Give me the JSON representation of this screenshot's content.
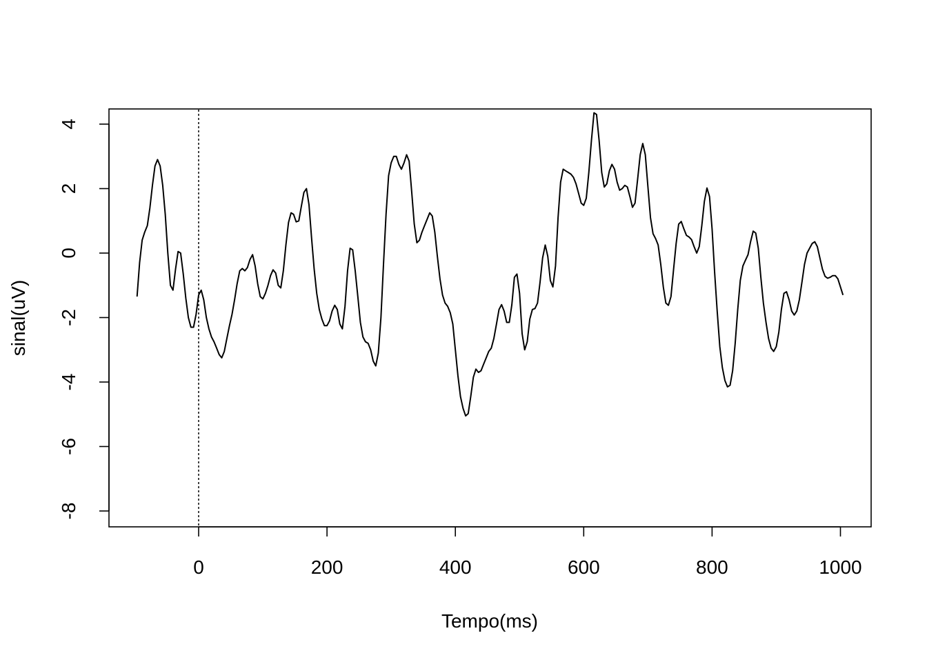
{
  "chart_data": {
    "type": "line",
    "title": "",
    "xlabel": "Tempo(ms)",
    "ylabel": "sinal(uV)",
    "xlim": [
      -140,
      1050
    ],
    "ylim": [
      -8.5,
      4.5
    ],
    "x_ticks": [
      0,
      200,
      400,
      600,
      800,
      1000
    ],
    "y_ticks": [
      4,
      2,
      0,
      -2,
      -4,
      -6,
      -8
    ],
    "x_tick_labels": [
      "0",
      "200",
      "400",
      "600",
      "800",
      "1000"
    ],
    "y_tick_labels": [
      "4",
      "2",
      "0",
      "-2",
      "-4",
      "-6",
      "-8"
    ],
    "grid": false,
    "reference_line": {
      "orientation": "vertical",
      "x": 0,
      "style": "dotted"
    },
    "series": [
      {
        "color": "#000000",
        "x": [
          -96,
          -92,
          -88,
          -84,
          -80,
          -76,
          -72,
          -68,
          -64,
          -60,
          -56,
          -52,
          -48,
          -44,
          -40,
          -36,
          -32,
          -28,
          -24,
          -20,
          -16,
          -12,
          -8,
          -4,
          0,
          4,
          8,
          12,
          16,
          20,
          24,
          28,
          32,
          36,
          40,
          44,
          48,
          52,
          56,
          60,
          64,
          68,
          72,
          76,
          80,
          84,
          88,
          92,
          96,
          100,
          104,
          108,
          112,
          116,
          120,
          124,
          128,
          132,
          136,
          140,
          144,
          148,
          152,
          156,
          160,
          164,
          168,
          172,
          176,
          180,
          184,
          188,
          192,
          196,
          200,
          204,
          208,
          212,
          216,
          220,
          224,
          228,
          232,
          236,
          240,
          244,
          248,
          252,
          256,
          260,
          264,
          268,
          272,
          276,
          280,
          284,
          288,
          292,
          296,
          300,
          304,
          308,
          312,
          316,
          320,
          324,
          328,
          332,
          336,
          340,
          344,
          348,
          352,
          356,
          360,
          364,
          368,
          372,
          376,
          380,
          384,
          388,
          392,
          396,
          400,
          404,
          408,
          412,
          416,
          420,
          424,
          428,
          432,
          436,
          440,
          444,
          448,
          452,
          456,
          460,
          464,
          468,
          472,
          476,
          480,
          484,
          488,
          492,
          496,
          500,
          504,
          508,
          512,
          516,
          520,
          524,
          528,
          532,
          536,
          540,
          544,
          548,
          552,
          556,
          560,
          564,
          568,
          572,
          576,
          580,
          584,
          588,
          592,
          596,
          600,
          604,
          608,
          612,
          616,
          620,
          624,
          628,
          632,
          636,
          640,
          644,
          648,
          652,
          656,
          660,
          664,
          668,
          672,
          676,
          680,
          684,
          688,
          692,
          696,
          700,
          704,
          708,
          712,
          716,
          720,
          724,
          728,
          732,
          736,
          740,
          744,
          748,
          752,
          756,
          760,
          764,
          768,
          772,
          776,
          780,
          784,
          788,
          792,
          796,
          800,
          804,
          808,
          812,
          816,
          820,
          824,
          828,
          832,
          836,
          840,
          844,
          848,
          852,
          856,
          860,
          864,
          868,
          872,
          876,
          880,
          884,
          888,
          892,
          896,
          900,
          904,
          908,
          912,
          916,
          920,
          924,
          928,
          932,
          936,
          940,
          944,
          948,
          952,
          956,
          960,
          964,
          968,
          972,
          976,
          980,
          984,
          988,
          992,
          996,
          1000,
          1004
        ],
        "y": [
          -1.35,
          -0.3,
          0.4,
          0.65,
          0.85,
          1.4,
          2.1,
          2.7,
          2.9,
          2.7,
          2.1,
          1.2,
          0.0,
          -1.0,
          -1.15,
          -0.5,
          0.05,
          0.0,
          -0.65,
          -1.4,
          -2.0,
          -2.3,
          -2.3,
          -1.9,
          -1.3,
          -1.15,
          -1.45,
          -2.0,
          -2.35,
          -2.6,
          -2.75,
          -2.95,
          -3.15,
          -3.25,
          -3.05,
          -2.65,
          -2.25,
          -1.9,
          -1.45,
          -0.95,
          -0.55,
          -0.48,
          -0.55,
          -0.45,
          -0.2,
          -0.05,
          -0.4,
          -0.95,
          -1.35,
          -1.42,
          -1.25,
          -1.0,
          -0.7,
          -0.52,
          -0.62,
          -1.0,
          -1.08,
          -0.55,
          0.25,
          0.95,
          1.25,
          1.2,
          0.97,
          1.0,
          1.45,
          1.88,
          2.0,
          1.5,
          0.45,
          -0.5,
          -1.25,
          -1.75,
          -2.05,
          -2.25,
          -2.25,
          -2.1,
          -1.8,
          -1.62,
          -1.75,
          -2.2,
          -2.35,
          -1.65,
          -0.55,
          0.15,
          0.1,
          -0.55,
          -1.35,
          -2.15,
          -2.6,
          -2.75,
          -2.8,
          -3.0,
          -3.35,
          -3.5,
          -3.1,
          -2.0,
          -0.35,
          1.2,
          2.4,
          2.8,
          3.0,
          3.0,
          2.75,
          2.6,
          2.8,
          3.05,
          2.85,
          1.9,
          0.9,
          0.32,
          0.4,
          0.65,
          0.85,
          1.05,
          1.25,
          1.15,
          0.65,
          -0.1,
          -0.8,
          -1.3,
          -1.55,
          -1.65,
          -1.85,
          -2.2,
          -3.0,
          -3.8,
          -4.45,
          -4.82,
          -5.05,
          -4.98,
          -4.45,
          -3.85,
          -3.6,
          -3.7,
          -3.65,
          -3.45,
          -3.25,
          -3.05,
          -2.95,
          -2.65,
          -2.2,
          -1.75,
          -1.6,
          -1.8,
          -2.15,
          -2.15,
          -1.6,
          -0.75,
          -0.65,
          -1.25,
          -2.5,
          -3.0,
          -2.75,
          -2.05,
          -1.75,
          -1.72,
          -1.55,
          -0.9,
          -0.15,
          0.25,
          -0.1,
          -0.85,
          -1.05,
          -0.4,
          1.1,
          2.2,
          2.6,
          2.55,
          2.5,
          2.45,
          2.35,
          2.15,
          1.85,
          1.55,
          1.48,
          1.7,
          2.5,
          3.5,
          4.35,
          4.3,
          3.5,
          2.5,
          2.05,
          2.15,
          2.55,
          2.75,
          2.6,
          2.2,
          1.95,
          2.0,
          2.1,
          2.05,
          1.75,
          1.42,
          1.55,
          2.3,
          3.05,
          3.4,
          3.05,
          2.05,
          1.1,
          0.6,
          0.45,
          0.25,
          -0.35,
          -1.05,
          -1.55,
          -1.62,
          -1.35,
          -0.5,
          0.3,
          0.9,
          0.98,
          0.75,
          0.55,
          0.5,
          0.42,
          0.2,
          0.0,
          0.2,
          0.85,
          1.6,
          2.02,
          1.75,
          0.75,
          -0.6,
          -1.8,
          -2.9,
          -3.55,
          -3.95,
          -4.15,
          -4.1,
          -3.65,
          -2.8,
          -1.75,
          -0.85,
          -0.4,
          -0.22,
          -0.05,
          0.35,
          0.68,
          0.62,
          0.15,
          -0.75,
          -1.55,
          -2.15,
          -2.65,
          -2.95,
          -3.05,
          -2.9,
          -2.45,
          -1.75,
          -1.25,
          -1.2,
          -1.45,
          -1.8,
          -1.92,
          -1.8,
          -1.45,
          -0.9,
          -0.35,
          0.0,
          0.15,
          0.3,
          0.35,
          0.2,
          -0.15,
          -0.5,
          -0.72,
          -0.78,
          -0.75,
          -0.7,
          -0.7,
          -0.8,
          -1.05,
          -1.3
        ]
      }
    ]
  }
}
